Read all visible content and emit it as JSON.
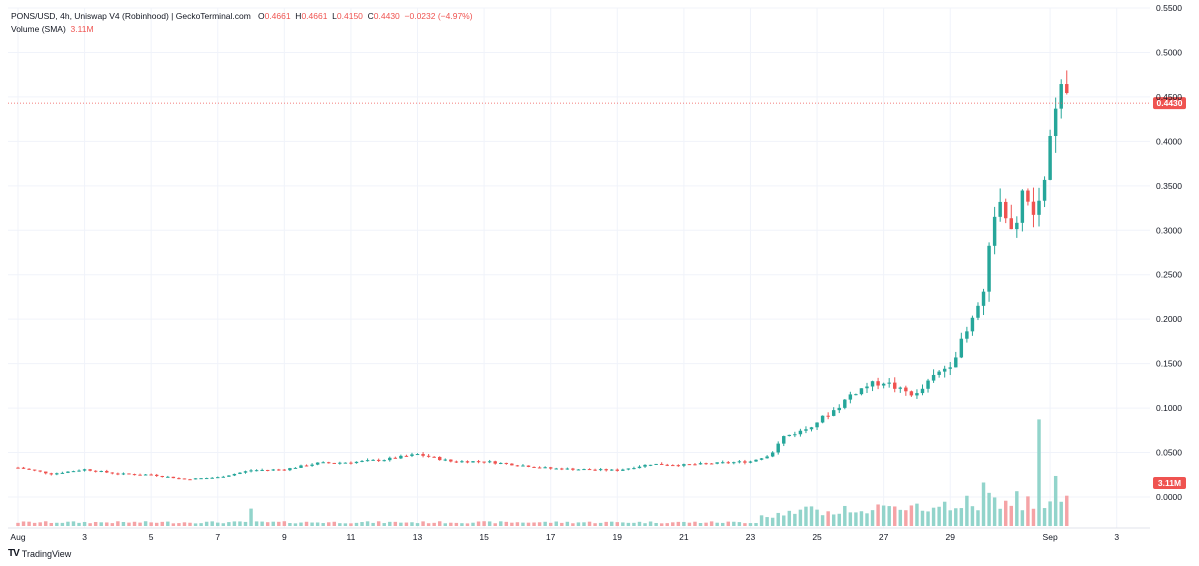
{
  "legend": {
    "symbol": "PONS/USD, 4h, Uniswap V4 (Robinhood) | GeckoTerminal.com",
    "o_label": "O",
    "o_value": "0.4661",
    "h_label": "H",
    "h_value": "0.4661",
    "l_label": "L",
    "l_value": "0.4150",
    "c_label": "C",
    "c_value": "0.4430",
    "change": "−0.0232 (−4.97%)",
    "volume_label": "Volume (SMA)",
    "volume_value": "3.11M"
  },
  "branding": {
    "name": "TradingView"
  },
  "colors": {
    "up": "#26a69a",
    "down": "#ef5350",
    "vol_up": "#92d4cb",
    "vol_down": "#f5a3a6",
    "grid": "#f0f3fa"
  },
  "chart_data": {
    "type": "candlestick",
    "price_axis": {
      "ticks": [
        0.0,
        0.05,
        0.1,
        0.15,
        0.2,
        0.25,
        0.3,
        0.35,
        0.4,
        0.45,
        0.5,
        0.55
      ],
      "tick_labels": [
        "0.0000",
        "0.0500",
        "0.1000",
        "0.1500",
        "0.2000",
        "0.2500",
        "0.3000",
        "0.3500",
        "0.4000",
        "0.4500",
        "0.5000",
        "0.5500"
      ],
      "range": [
        0.0,
        0.55
      ]
    },
    "time_axis": {
      "labels": [
        {
          "label": "Aug",
          "day": 1
        },
        {
          "label": "3",
          "day": 3
        },
        {
          "label": "5",
          "day": 5
        },
        {
          "label": "7",
          "day": 7
        },
        {
          "label": "9",
          "day": 9
        },
        {
          "label": "11",
          "day": 11
        },
        {
          "label": "13",
          "day": 13
        },
        {
          "label": "15",
          "day": 15
        },
        {
          "label": "17",
          "day": 17
        },
        {
          "label": "19",
          "day": 19
        },
        {
          "label": "21",
          "day": 21
        },
        {
          "label": "23",
          "day": 23
        },
        {
          "label": "25",
          "day": 25
        },
        {
          "label": "27",
          "day": 27
        },
        {
          "label": "29",
          "day": 29
        },
        {
          "label": "Sep",
          "day": 32
        },
        {
          "label": "3",
          "day": 34
        }
      ],
      "range_days": [
        0.7,
        35.0
      ]
    },
    "last_price": {
      "value": 0.443,
      "label": "0.4430"
    },
    "last_volume": {
      "label": "3.11M"
    },
    "anchors": [
      {
        "day": 1.0,
        "close": 0.033
      },
      {
        "day": 2.0,
        "close": 0.026
      },
      {
        "day": 3.0,
        "close": 0.031
      },
      {
        "day": 4.0,
        "close": 0.026
      },
      {
        "day": 5.0,
        "close": 0.025
      },
      {
        "day": 6.0,
        "close": 0.02
      },
      {
        "day": 7.0,
        "close": 0.022
      },
      {
        "day": 8.0,
        "close": 0.03
      },
      {
        "day": 9.0,
        "close": 0.031
      },
      {
        "day": 10.0,
        "close": 0.038
      },
      {
        "day": 11.0,
        "close": 0.039
      },
      {
        "day": 12.0,
        "close": 0.042
      },
      {
        "day": 13.0,
        "close": 0.048
      },
      {
        "day": 14.0,
        "close": 0.04
      },
      {
        "day": 15.0,
        "close": 0.04
      },
      {
        "day": 16.0,
        "close": 0.036
      },
      {
        "day": 17.0,
        "close": 0.032
      },
      {
        "day": 18.0,
        "close": 0.031
      },
      {
        "day": 19.0,
        "close": 0.03
      },
      {
        "day": 20.0,
        "close": 0.037
      },
      {
        "day": 21.0,
        "close": 0.036
      },
      {
        "day": 22.0,
        "close": 0.038
      },
      {
        "day": 23.0,
        "close": 0.04
      },
      {
        "day": 23.6,
        "close": 0.048
      },
      {
        "day": 24.0,
        "close": 0.068
      },
      {
        "day": 24.6,
        "close": 0.075
      },
      {
        "day": 25.0,
        "close": 0.085
      },
      {
        "day": 25.6,
        "close": 0.1
      },
      {
        "day": 26.0,
        "close": 0.115
      },
      {
        "day": 26.5,
        "close": 0.125
      },
      {
        "day": 27.0,
        "close": 0.13
      },
      {
        "day": 27.5,
        "close": 0.12
      },
      {
        "day": 28.0,
        "close": 0.115
      },
      {
        "day": 28.5,
        "close": 0.135
      },
      {
        "day": 29.0,
        "close": 0.15
      },
      {
        "day": 29.5,
        "close": 0.185
      },
      {
        "day": 30.0,
        "close": 0.235
      },
      {
        "day": 30.4,
        "close": 0.34
      },
      {
        "day": 30.8,
        "close": 0.29
      },
      {
        "day": 31.2,
        "close": 0.34
      },
      {
        "day": 31.6,
        "close": 0.31
      },
      {
        "day": 32.0,
        "close": 0.4
      },
      {
        "day": 32.35,
        "close": 0.46
      },
      {
        "day": 32.5,
        "close": 0.443
      }
    ],
    "volume_spikes": [
      {
        "day": 8.0,
        "value": 0.4
      },
      {
        "day": 30.0,
        "value": 1.0
      },
      {
        "day": 31.0,
        "value": 0.8
      },
      {
        "day": 31.7,
        "value": 2.45
      },
      {
        "day": 32.2,
        "value": 1.15
      }
    ]
  }
}
